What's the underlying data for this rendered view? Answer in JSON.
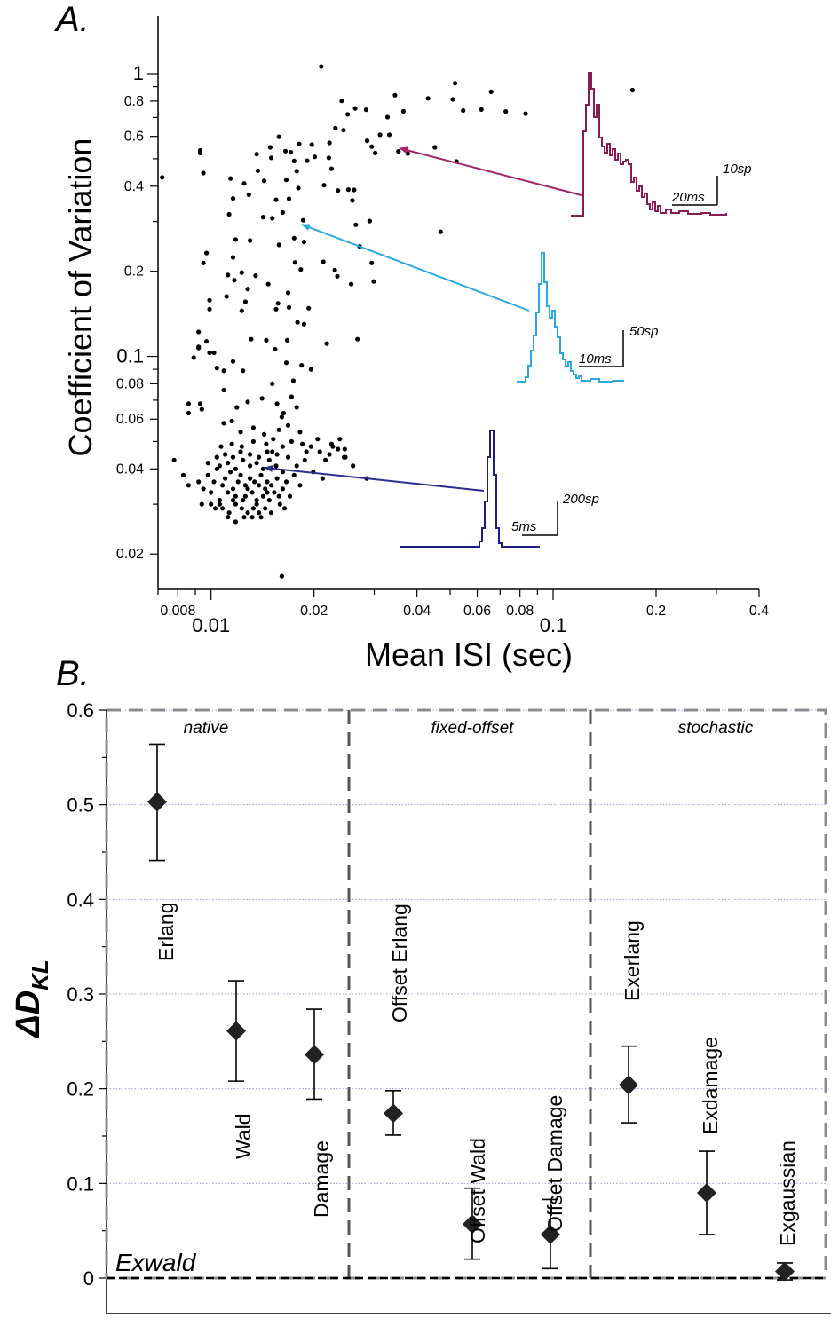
{
  "panelA": {
    "label": "A.",
    "ylabel": "Coefficient of Variation",
    "xlabel": "Mean ISI (sec)",
    "chart_data": {
      "type": "scatter",
      "xscale": "log",
      "yscale": "log",
      "xlim": [
        0.007,
        0.4
      ],
      "ylim": [
        0.015,
        1.6
      ],
      "xticks": [
        {
          "v": 0.008,
          "label": "0.008"
        },
        {
          "v": 0.01,
          "label": "0.01",
          "major": true
        },
        {
          "v": 0.02,
          "label": "0.02"
        },
        {
          "v": 0.04,
          "label": "0.04"
        },
        {
          "v": 0.06,
          "label": "0.06"
        },
        {
          "v": 0.08,
          "label": "0.08"
        },
        {
          "v": 0.1,
          "label": "0.1",
          "major": true
        },
        {
          "v": 0.2,
          "label": "0.2"
        },
        {
          "v": 0.4,
          "label": "0.4"
        }
      ],
      "yticks": [
        {
          "v": 0.02,
          "label": "0.02"
        },
        {
          "v": 0.04,
          "label": "0.04"
        },
        {
          "v": 0.06,
          "label": "0.06"
        },
        {
          "v": 0.08,
          "label": "0.08"
        },
        {
          "v": 0.1,
          "label": "0.1",
          "major": true
        },
        {
          "v": 0.2,
          "label": "0.2"
        },
        {
          "v": 0.4,
          "label": "0.4"
        },
        {
          "v": 0.6,
          "label": "0.6"
        },
        {
          "v": 0.8,
          "label": "0.8"
        },
        {
          "v": 1,
          "label": "1",
          "major": true
        }
      ],
      "points": [
        [
          0.0092,
          0.036
        ],
        [
          0.0095,
          0.034
        ],
        [
          0.0098,
          0.038
        ],
        [
          0.01,
          0.033
        ],
        [
          0.0102,
          0.036
        ],
        [
          0.0104,
          0.04
        ],
        [
          0.0106,
          0.031
        ],
        [
          0.0108,
          0.035
        ],
        [
          0.011,
          0.037
        ],
        [
          0.0112,
          0.033
        ],
        [
          0.0114,
          0.039
        ],
        [
          0.0116,
          0.034
        ],
        [
          0.0118,
          0.032
        ],
        [
          0.012,
          0.036
        ],
        [
          0.0122,
          0.038
        ],
        [
          0.0124,
          0.031
        ],
        [
          0.0126,
          0.035
        ],
        [
          0.0128,
          0.034
        ],
        [
          0.013,
          0.037
        ],
        [
          0.0132,
          0.033
        ],
        [
          0.0134,
          0.036
        ],
        [
          0.0136,
          0.03
        ],
        [
          0.0138,
          0.035
        ],
        [
          0.014,
          0.038
        ],
        [
          0.0142,
          0.032
        ],
        [
          0.0144,
          0.034
        ],
        [
          0.0146,
          0.036
        ],
        [
          0.0148,
          0.031
        ],
        [
          0.015,
          0.035
        ],
        [
          0.0153,
          0.033
        ],
        [
          0.0156,
          0.037
        ],
        [
          0.0159,
          0.03
        ],
        [
          0.0162,
          0.034
        ],
        [
          0.0166,
          0.036
        ],
        [
          0.017,
          0.032
        ],
        [
          0.0103,
          0.029
        ],
        [
          0.0108,
          0.029
        ],
        [
          0.0113,
          0.028
        ],
        [
          0.0118,
          0.03
        ],
        [
          0.0123,
          0.029
        ],
        [
          0.0128,
          0.028
        ],
        [
          0.0133,
          0.029
        ],
        [
          0.0138,
          0.028
        ],
        [
          0.0144,
          0.029
        ],
        [
          0.015,
          0.028
        ],
        [
          0.0112,
          0.027
        ],
        [
          0.0118,
          0.026
        ],
        [
          0.0125,
          0.027
        ],
        [
          0.0132,
          0.027
        ],
        [
          0.014,
          0.027
        ],
        [
          0.0106,
          0.041
        ],
        [
          0.0112,
          0.042
        ],
        [
          0.0118,
          0.04
        ],
        [
          0.0124,
          0.043
        ],
        [
          0.013,
          0.041
        ],
        [
          0.0136,
          0.042
        ],
        [
          0.0142,
          0.04
        ],
        [
          0.0148,
          0.043
        ],
        [
          0.0155,
          0.041
        ],
        [
          0.0162,
          0.039
        ],
        [
          0.0098,
          0.042
        ],
        [
          0.0104,
          0.044
        ],
        [
          0.011,
          0.045
        ],
        [
          0.0116,
          0.044
        ],
        [
          0.0122,
          0.046
        ],
        [
          0.013,
          0.045
        ],
        [
          0.0138,
          0.044
        ],
        [
          0.0146,
          0.046
        ],
        [
          0.0156,
          0.045
        ],
        [
          0.0168,
          0.044
        ],
        [
          0.0178,
          0.041
        ],
        [
          0.0188,
          0.043
        ],
        [
          0.0199,
          0.039
        ],
        [
          0.0212,
          0.037
        ],
        [
          0.0175,
          0.038
        ],
        [
          0.0182,
          0.035
        ],
        [
          0.0094,
          0.03
        ],
        [
          0.01,
          0.03
        ],
        [
          0.0106,
          0.03
        ],
        [
          0.0116,
          0.031
        ],
        [
          0.0126,
          0.032
        ],
        [
          0.0136,
          0.031
        ],
        [
          0.0146,
          0.033
        ],
        [
          0.0158,
          0.032
        ],
        [
          0.0164,
          0.029
        ],
        [
          0.0107,
          0.048
        ],
        [
          0.0115,
          0.049
        ],
        [
          0.0123,
          0.048
        ],
        [
          0.0133,
          0.05
        ],
        [
          0.0145,
          0.049
        ],
        [
          0.0152,
          0.051
        ],
        [
          0.0162,
          0.048
        ],
        [
          0.0172,
          0.05
        ],
        [
          0.0185,
          0.049
        ],
        [
          0.0196,
          0.048
        ],
        [
          0.0208,
          0.046
        ],
        [
          0.0222,
          0.045
        ],
        [
          0.0235,
          0.047
        ],
        [
          0.0245,
          0.044
        ],
        [
          0.026,
          0.041
        ],
        [
          0.0225,
          0.049
        ],
        [
          0.0238,
          0.051
        ],
        [
          0.019,
          0.046
        ],
        [
          0.0158,
          0.055
        ],
        [
          0.0168,
          0.057
        ],
        [
          0.0182,
          0.054
        ],
        [
          0.0143,
          0.053
        ],
        [
          0.0133,
          0.056
        ],
        [
          0.0122,
          0.054
        ],
        [
          0.0151,
          0.046
        ],
        [
          0.0205,
          0.051
        ],
        [
          0.0119,
          0.066
        ],
        [
          0.0128,
          0.069
        ],
        [
          0.0141,
          0.071
        ],
        [
          0.0156,
          0.068
        ],
        [
          0.0172,
          0.072
        ],
        [
          0.0163,
          0.063
        ],
        [
          0.0151,
          0.08
        ],
        [
          0.0174,
          0.082
        ],
        [
          0.0184,
          0.093
        ],
        [
          0.0196,
          0.09
        ],
        [
          0.0166,
          0.095
        ],
        [
          0.0154,
          0.106
        ],
        [
          0.0145,
          0.114
        ],
        [
          0.0167,
          0.114
        ],
        [
          0.0179,
          0.132
        ],
        [
          0.0187,
          0.13
        ],
        [
          0.0155,
          0.147
        ],
        [
          0.0157,
          0.154
        ],
        [
          0.0169,
          0.149
        ],
        [
          0.0109,
          0.089
        ],
        [
          0.0116,
          0.096
        ],
        [
          0.0124,
          0.089
        ],
        [
          0.0131,
          0.115
        ],
        [
          0.0123,
          0.145
        ],
        [
          0.0126,
          0.156
        ],
        [
          0.0111,
          0.163
        ],
        [
          0.0099,
          0.147
        ],
        [
          0.0092,
          0.122
        ],
        [
          0.0097,
          0.113
        ],
        [
          0.0099,
          0.103
        ],
        [
          0.0102,
          0.103
        ],
        [
          0.0104,
          0.091
        ],
        [
          0.0109,
          0.076
        ],
        [
          0.0093,
          0.068
        ],
        [
          0.0094,
          0.065
        ],
        [
          0.0115,
          0.059
        ],
        [
          0.0109,
          0.058
        ],
        [
          0.0112,
          0.194
        ],
        [
          0.0117,
          0.186
        ],
        [
          0.0123,
          0.198
        ],
        [
          0.0147,
          0.18
        ],
        [
          0.0135,
          0.193
        ],
        [
          0.0128,
          0.173
        ],
        [
          0.0168,
          0.168
        ],
        [
          0.0116,
          0.224
        ],
        [
          0.0097,
          0.232
        ],
        [
          0.0095,
          0.214
        ],
        [
          0.0118,
          0.259
        ],
        [
          0.013,
          0.257
        ],
        [
          0.0113,
          0.318
        ],
        [
          0.0142,
          0.311
        ],
        [
          0.0151,
          0.308
        ],
        [
          0.0162,
          0.323
        ],
        [
          0.0158,
          0.248
        ],
        [
          0.0175,
          0.262
        ],
        [
          0.0187,
          0.254
        ],
        [
          0.0176,
          0.215
        ],
        [
          0.0183,
          0.203
        ],
        [
          0.0213,
          0.216
        ],
        [
          0.023,
          0.202
        ],
        [
          0.0116,
          0.362
        ],
        [
          0.0129,
          0.373
        ],
        [
          0.0114,
          0.426
        ],
        [
          0.0125,
          0.409
        ],
        [
          0.0137,
          0.454
        ],
        [
          0.0143,
          0.418
        ],
        [
          0.0155,
          0.358
        ],
        [
          0.0169,
          0.361
        ],
        [
          0.018,
          0.394
        ],
        [
          0.0178,
          0.452
        ],
        [
          0.0166,
          0.421
        ],
        [
          0.0191,
          0.492
        ],
        [
          0.0175,
          0.491
        ],
        [
          0.015,
          0.504
        ],
        [
          0.0165,
          0.532
        ],
        [
          0.0149,
          0.549
        ],
        [
          0.0136,
          0.519
        ],
        [
          0.0158,
          0.598
        ],
        [
          0.0171,
          0.527
        ],
        [
          0.0181,
          0.564
        ],
        [
          0.0197,
          0.561
        ],
        [
          0.0201,
          0.508
        ],
        [
          0.0221,
          0.504
        ],
        [
          0.0225,
          0.461
        ],
        [
          0.0222,
          0.569
        ],
        [
          0.0244,
          0.631
        ],
        [
          0.0231,
          0.642
        ],
        [
          0.0251,
          0.718
        ],
        [
          0.0241,
          0.801
        ],
        [
          0.0264,
          0.754
        ],
        [
          0.0284,
          0.746
        ],
        [
          0.0286,
          0.579
        ],
        [
          0.0295,
          0.552
        ],
        [
          0.0302,
          0.524
        ],
        [
          0.0312,
          0.608
        ],
        [
          0.0328,
          0.702
        ],
        [
          0.0345,
          0.839
        ],
        [
          0.0332,
          0.608
        ],
        [
          0.0376,
          0.522
        ],
        [
          0.0353,
          0.531
        ],
        [
          0.0214,
          0.403
        ],
        [
          0.0186,
          0.303
        ],
        [
          0.0235,
          0.386
        ],
        [
          0.0259,
          0.356
        ],
        [
          0.0291,
          0.301
        ],
        [
          0.0265,
          0.292
        ],
        [
          0.0252,
          0.389
        ],
        [
          0.0262,
          0.388
        ],
        [
          0.0272,
          0.245
        ],
        [
          0.0295,
          0.214
        ],
        [
          0.0299,
          0.184
        ],
        [
          0.0234,
          0.192
        ],
        [
          0.021,
          1.06
        ],
        [
          0.0193,
          0.148
        ],
        [
          0.0257,
          0.18
        ],
        [
          0.0268,
          0.115
        ],
        [
          0.0218,
          0.111
        ],
        [
          0.0178,
          0.066
        ],
        [
          0.0161,
          0.061
        ],
        [
          0.0216,
          0.043
        ],
        [
          0.0247,
          0.044
        ],
        [
          0.0285,
          0.037
        ],
        [
          0.0246,
          0.047
        ],
        [
          0.0227,
          0.048
        ],
        [
          0.0161,
          0.0167
        ],
        [
          0.0078,
          0.043
        ],
        [
          0.0083,
          0.038
        ],
        [
          0.0086,
          0.035
        ],
        [
          0.0092,
          0.108
        ],
        [
          0.0092,
          0.107
        ],
        [
          0.0086,
          0.063
        ],
        [
          0.0089,
          0.099
        ],
        [
          0.0086,
          0.068
        ],
        [
          0.0099,
          0.158
        ],
        [
          0.0072,
          0.43
        ],
        [
          0.0093,
          0.524
        ],
        [
          0.0093,
          0.535
        ],
        [
          0.0095,
          0.445
        ],
        [
          0.0469,
          0.276
        ],
        [
          0.0451,
          0.549
        ],
        [
          0.0509,
          0.811
        ],
        [
          0.0517,
          0.926
        ],
        [
          0.0522,
          0.489
        ],
        [
          0.0546,
          0.741
        ],
        [
          0.0617,
          0.747
        ],
        [
          0.0659,
          0.863
        ],
        [
          0.0727,
          0.735
        ],
        [
          0.0831,
          0.722
        ],
        [
          0.1706,
          0.875
        ],
        [
          0.0431,
          0.818
        ],
        [
          0.0365,
          0.736
        ]
      ],
      "insets": [
        {
          "name": "high-cv-psth",
          "color": "#8b1a52",
          "time_scale": "20ms",
          "count_scale": "10sp",
          "arrow_to": [
            0.034,
            0.52
          ]
        },
        {
          "name": "mid-cv-psth",
          "color": "#2aa9df",
          "time_scale": "10ms",
          "count_scale": "50sp",
          "arrow_to": [
            0.016,
            0.27
          ]
        },
        {
          "name": "low-cv-psth",
          "color": "#1c1f80",
          "time_scale": "5ms",
          "count_scale": "200sp",
          "arrow_to": [
            0.0135,
            0.037
          ]
        }
      ]
    }
  },
  "panelB": {
    "label": "B.",
    "ylabel": "ΔD",
    "ylabel_sub": "KL",
    "baseline_label": "Exwald",
    "chart_data": {
      "type": "scatter-errorbar",
      "ylim": [
        -0.04,
        0.6
      ],
      "yticks": [
        0,
        0.1,
        0.2,
        0.3,
        0.4,
        0.5,
        0.6
      ],
      "ytick_labels": [
        "0",
        "0.1",
        "0.2",
        "0.3",
        "0.4",
        "0.5",
        "0.6"
      ],
      "grid": true,
      "groups": [
        "native",
        "fixed-offset",
        "stochastic"
      ],
      "models": [
        {
          "name": "Erlang",
          "group": "native",
          "value": 0.503,
          "lo": 0.441,
          "hi": 0.564
        },
        {
          "name": "Wald",
          "group": "native",
          "value": 0.261,
          "lo": 0.208,
          "hi": 0.314
        },
        {
          "name": "Damage",
          "group": "native",
          "value": 0.236,
          "lo": 0.189,
          "hi": 0.284
        },
        {
          "name": "Offset Erlang",
          "group": "fixed-offset",
          "value": 0.174,
          "lo": 0.151,
          "hi": 0.198
        },
        {
          "name": "Offset Wald",
          "group": "fixed-offset",
          "value": 0.057,
          "lo": 0.02,
          "hi": 0.095
        },
        {
          "name": "Offset Damage",
          "group": "fixed-offset",
          "value": 0.046,
          "lo": 0.01,
          "hi": 0.083
        },
        {
          "name": "Exerlang",
          "group": "stochastic",
          "value": 0.204,
          "lo": 0.164,
          "hi": 0.245
        },
        {
          "name": "Exdamage",
          "group": "stochastic",
          "value": 0.09,
          "lo": 0.046,
          "hi": 0.134
        },
        {
          "name": "Exgaussian",
          "group": "stochastic",
          "value": 0.007,
          "lo": -0.002,
          "hi": 0.016
        }
      ]
    }
  }
}
